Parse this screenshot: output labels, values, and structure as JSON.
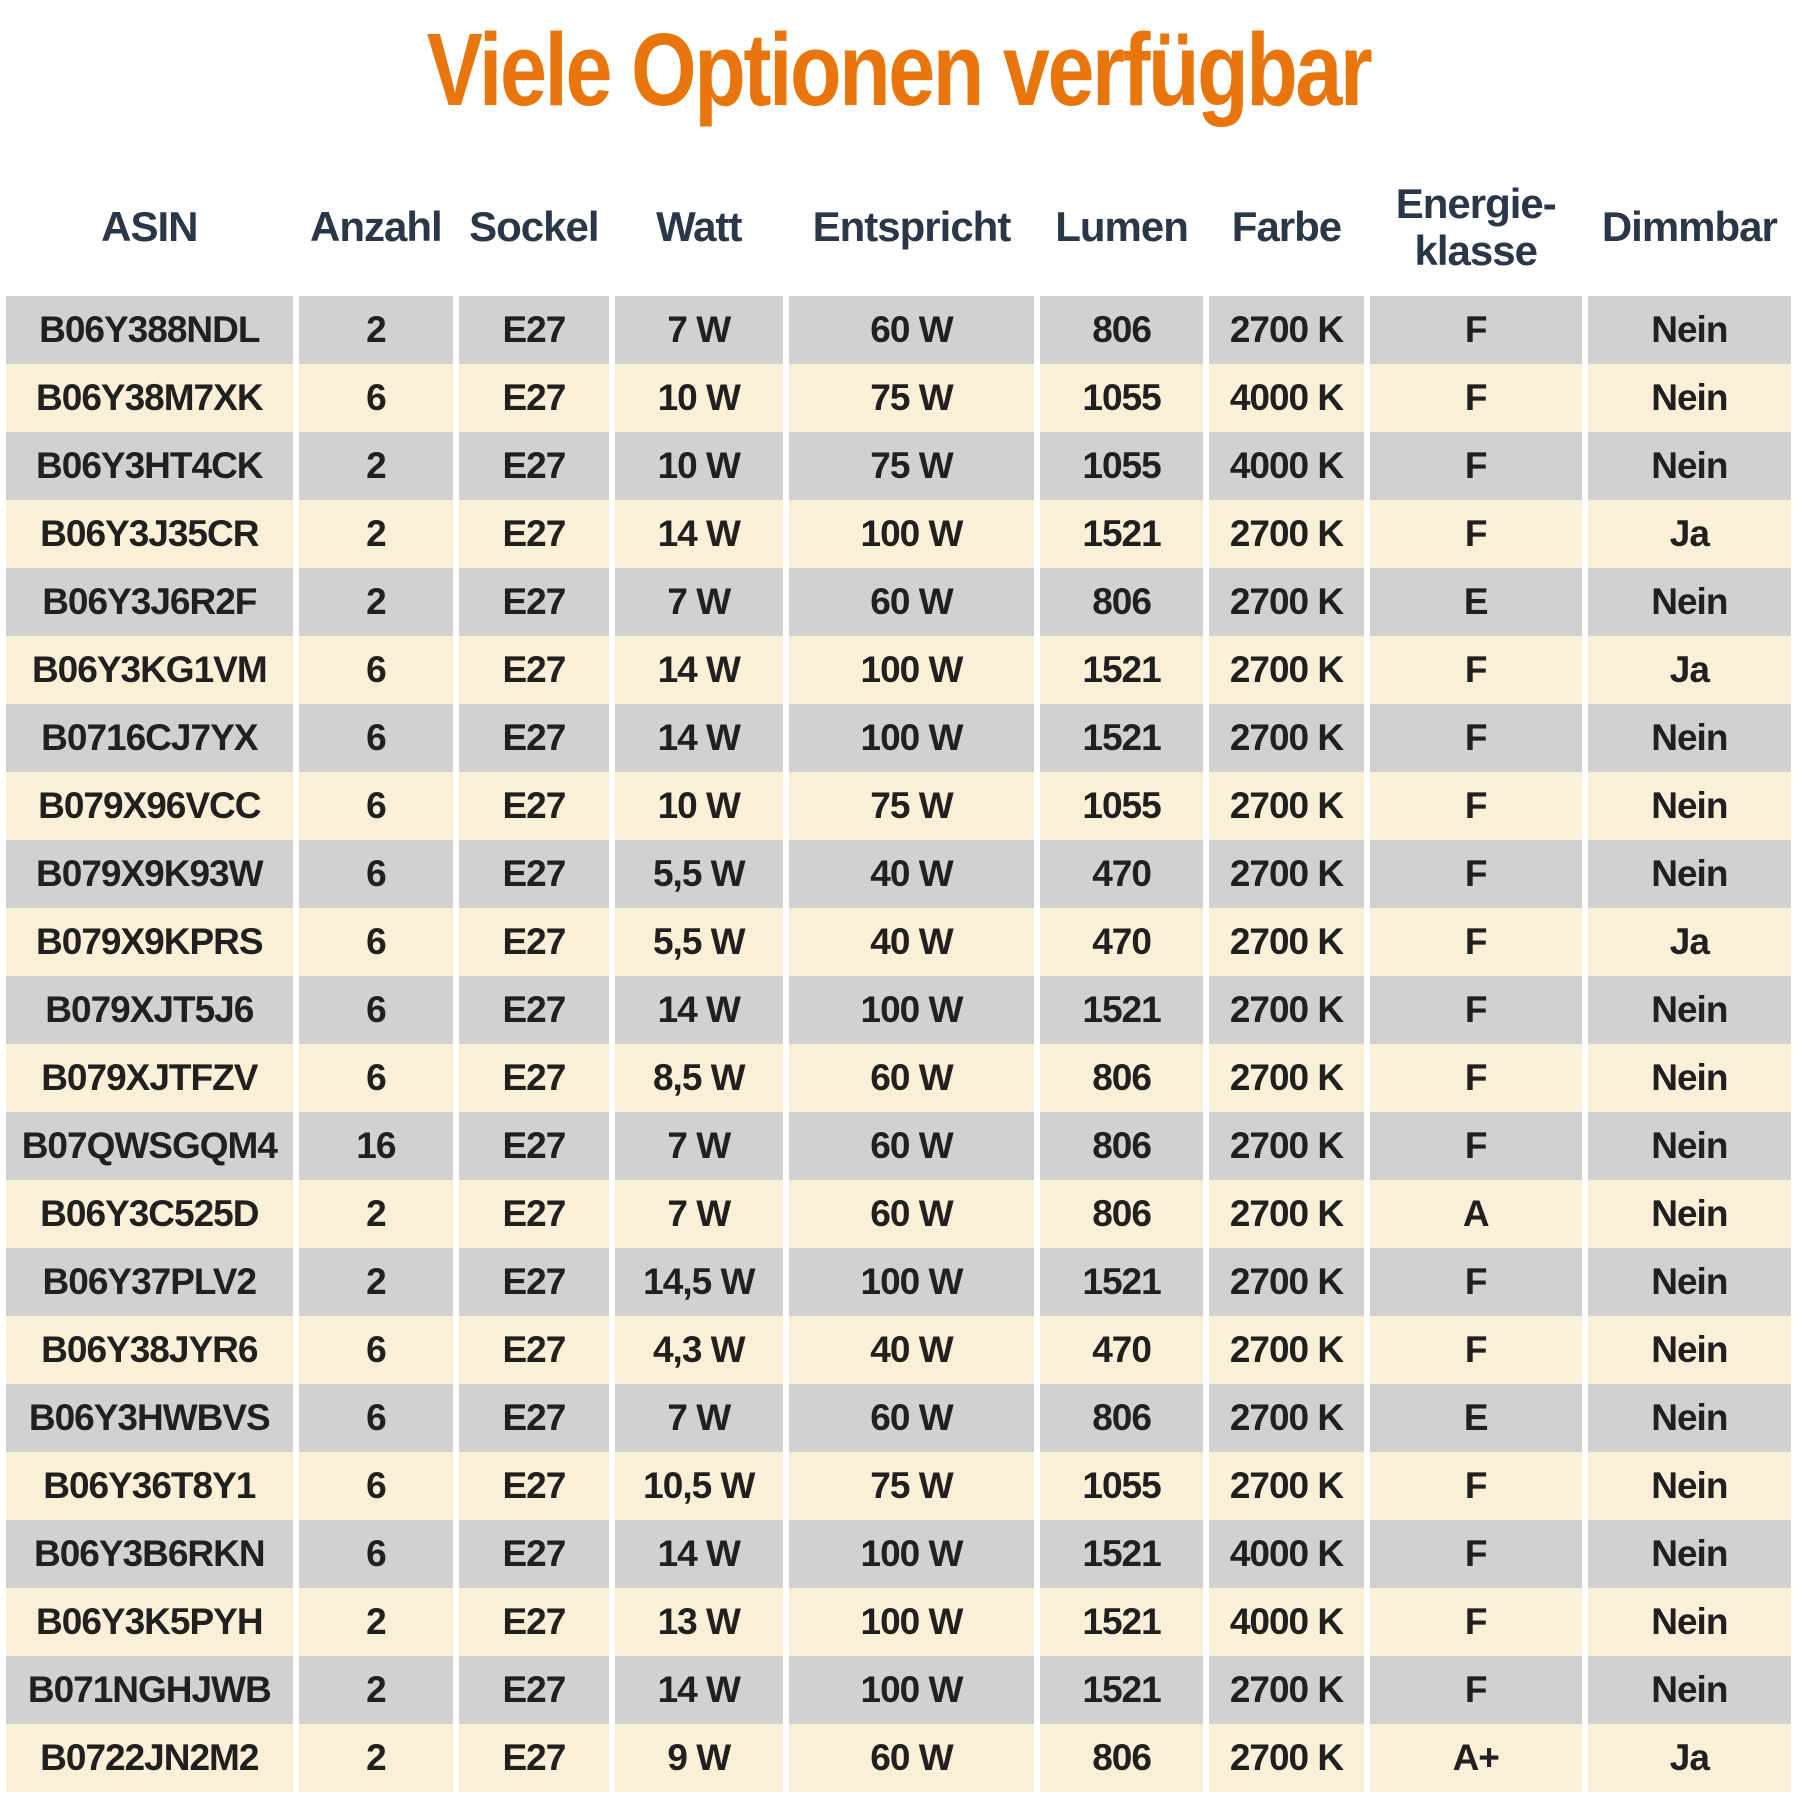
{
  "title": "Viele Optionen verfügbar",
  "colors": {
    "title_text": "#E8760D",
    "header_text": "#2A3747",
    "cell_text": "#21201E",
    "row_gray": "#D1D1D1",
    "row_cream": "#FAEFD7",
    "background": "#FFFFFF"
  },
  "chart_data": {
    "type": "table",
    "title": "Viele Optionen verfügbar",
    "columns": [
      "ASIN",
      "Anzahl",
      "Sockel",
      "Watt",
      "Entspricht",
      "Lumen",
      "Farbe",
      "Energie-\nklasse",
      "Dimmbar"
    ],
    "column_ids": [
      "asin",
      "anzahl",
      "sockel",
      "watt",
      "entspricht",
      "lumen",
      "farbe",
      "energieklasse",
      "dimmbar"
    ],
    "rows": [
      [
        "B06Y388NDL",
        "2",
        "E27",
        "7 W",
        "60 W",
        "806",
        "2700 K",
        "F",
        "Nein"
      ],
      [
        "B06Y38M7XK",
        "6",
        "E27",
        "10 W",
        "75 W",
        "1055",
        "4000 K",
        "F",
        "Nein"
      ],
      [
        "B06Y3HT4CK",
        "2",
        "E27",
        "10 W",
        "75 W",
        "1055",
        "4000 K",
        "F",
        "Nein"
      ],
      [
        "B06Y3J35CR",
        "2",
        "E27",
        "14 W",
        "100 W",
        "1521",
        "2700 K",
        "F",
        "Ja"
      ],
      [
        "B06Y3J6R2F",
        "2",
        "E27",
        "7 W",
        "60 W",
        "806",
        "2700 K",
        "E",
        "Nein"
      ],
      [
        "B06Y3KG1VM",
        "6",
        "E27",
        "14 W",
        "100 W",
        "1521",
        "2700 K",
        "F",
        "Ja"
      ],
      [
        "B0716CJ7YX",
        "6",
        "E27",
        "14 W",
        "100 W",
        "1521",
        "2700 K",
        "F",
        "Nein"
      ],
      [
        "B079X96VCC",
        "6",
        "E27",
        "10 W",
        "75 W",
        "1055",
        "2700 K",
        "F",
        "Nein"
      ],
      [
        "B079X9K93W",
        "6",
        "E27",
        "5,5 W",
        "40 W",
        "470",
        "2700 K",
        "F",
        "Nein"
      ],
      [
        "B079X9KPRS",
        "6",
        "E27",
        "5,5 W",
        "40 W",
        "470",
        "2700 K",
        "F",
        "Ja"
      ],
      [
        "B079XJT5J6",
        "6",
        "E27",
        "14 W",
        "100 W",
        "1521",
        "2700 K",
        "F",
        "Nein"
      ],
      [
        "B079XJTFZV",
        "6",
        "E27",
        "8,5 W",
        "60 W",
        "806",
        "2700 K",
        "F",
        "Nein"
      ],
      [
        "B07QWSGQM4",
        "16",
        "E27",
        "7 W",
        "60 W",
        "806",
        "2700 K",
        "F",
        "Nein"
      ],
      [
        "B06Y3C525D",
        "2",
        "E27",
        "7 W",
        "60 W",
        "806",
        "2700 K",
        "A",
        "Nein"
      ],
      [
        "B06Y37PLV2",
        "2",
        "E27",
        "14,5 W",
        "100 W",
        "1521",
        "2700 K",
        "F",
        "Nein"
      ],
      [
        "B06Y38JYR6",
        "6",
        "E27",
        "4,3 W",
        "40 W",
        "470",
        "2700 K",
        "F",
        "Nein"
      ],
      [
        "B06Y3HWBVS",
        "6",
        "E27",
        "7 W",
        "60 W",
        "806",
        "2700 K",
        "E",
        "Nein"
      ],
      [
        "B06Y36T8Y1",
        "6",
        "E27",
        "10,5 W",
        "75 W",
        "1055",
        "2700 K",
        "F",
        "Nein"
      ],
      [
        "B06Y3B6RKN",
        "6",
        "E27",
        "14 W",
        "100 W",
        "1521",
        "4000 K",
        "F",
        "Nein"
      ],
      [
        "B06Y3K5PYH",
        "2",
        "E27",
        "13 W",
        "100 W",
        "1521",
        "4000 K",
        "F",
        "Nein"
      ],
      [
        "B071NGHJWB",
        "2",
        "E27",
        "14 W",
        "100 W",
        "1521",
        "2700 K",
        "F",
        "Nein"
      ],
      [
        "B0722JN2M2",
        "2",
        "E27",
        "9 W",
        "60 W",
        "806",
        "2700 K",
        "A+",
        "Ja"
      ]
    ],
    "row_stripe_order": [
      "gray",
      "cream"
    ],
    "layout": {
      "grid": "off",
      "header_position": "top"
    }
  }
}
